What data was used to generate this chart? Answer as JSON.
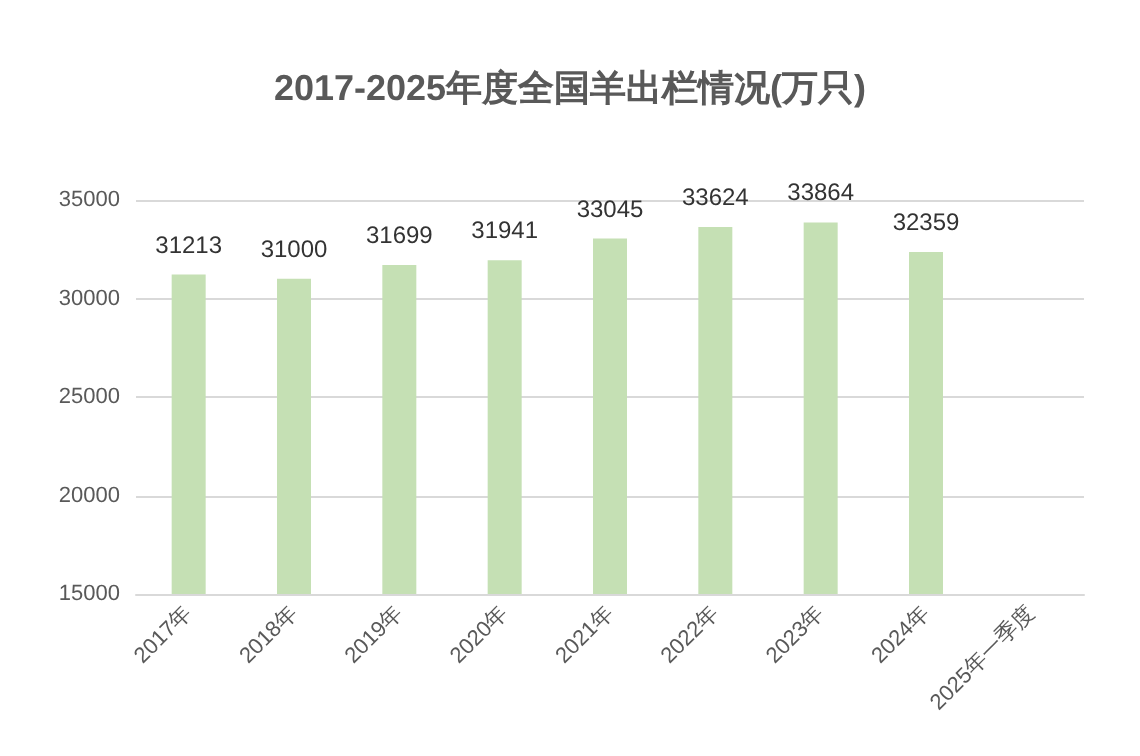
{
  "chart_data": {
    "type": "bar",
    "title": "2017-2025年度全国羊出栏情况(万只)",
    "categories": [
      "2017年",
      "2018年",
      "2019年",
      "2020年",
      "2021年",
      "2022年",
      "2023年",
      "2024年",
      "2025年一季度"
    ],
    "values": [
      31213,
      31000,
      31699,
      31941,
      33045,
      33624,
      33864,
      32359,
      null
    ],
    "color": "#c5e0b4",
    "ylim": [
      15000,
      35000
    ],
    "yticks": [
      15000,
      20000,
      25000,
      30000,
      35000
    ],
    "grid": "y",
    "data_labels": true
  }
}
